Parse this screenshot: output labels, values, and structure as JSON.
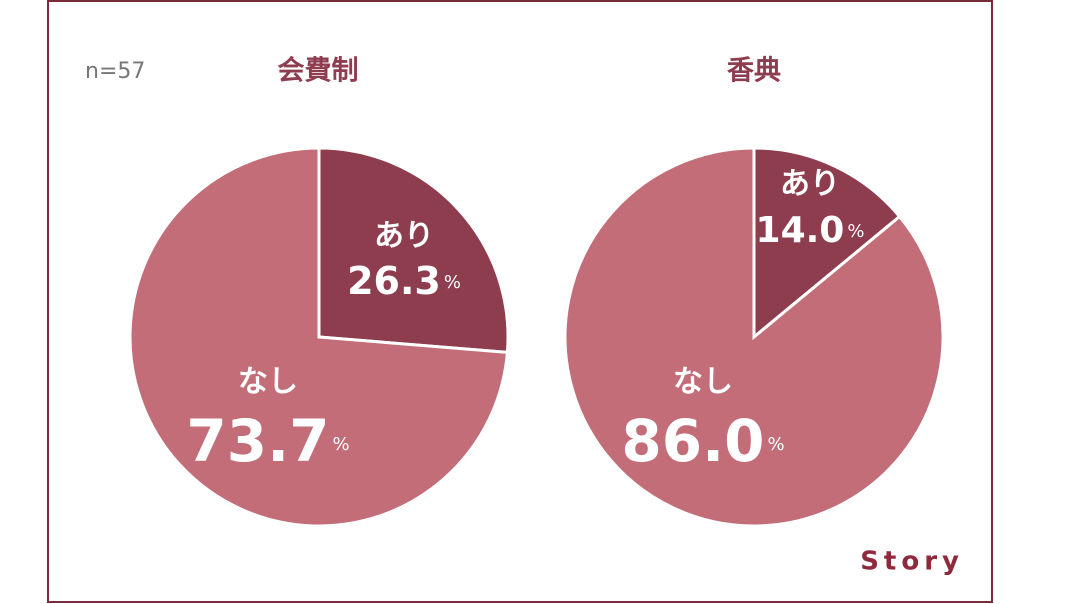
{
  "note": "n=57",
  "brand": "Story",
  "chart_data": [
    {
      "type": "pie",
      "title": "会費制",
      "categories": [
        "あり",
        "なし"
      ],
      "values": [
        26.3,
        73.7
      ],
      "unit": "%",
      "colors": [
        "#8e3d4f",
        "#c26d78"
      ]
    },
    {
      "type": "pie",
      "title": "香典",
      "categories": [
        "あり",
        "なし"
      ],
      "values": [
        14.0,
        86.0
      ],
      "value_labels": [
        "14.0",
        "86.0"
      ],
      "unit": "%",
      "colors": [
        "#8e3d4f",
        "#c26d78"
      ]
    }
  ]
}
